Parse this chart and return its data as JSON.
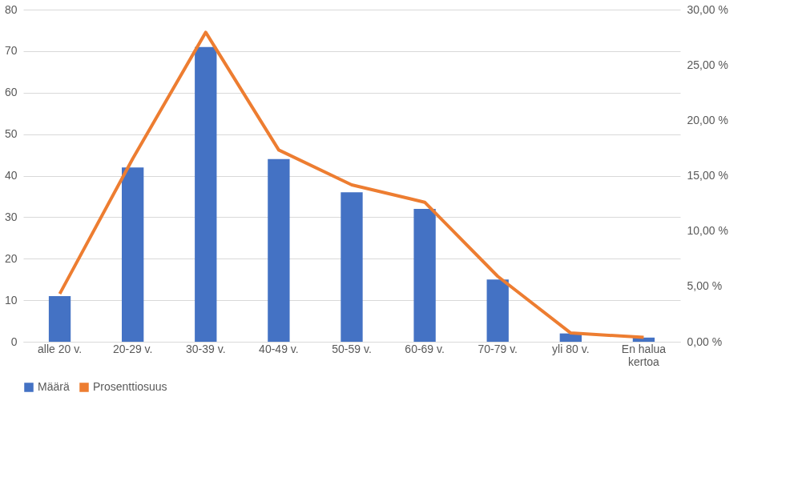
{
  "chart_data": {
    "type": "bar",
    "categories": [
      "alle 20 v.",
      "20-29 v.",
      "30-39 v.",
      "40-49 v.",
      "50-59 v.",
      "60-69 v.",
      "70-79 v.",
      "yli 80 v.",
      "En halua kertoa"
    ],
    "series": [
      {
        "name": "Määrä",
        "color": "#4472c4",
        "values": [
          11,
          42,
          71,
          44,
          36,
          32,
          15,
          2,
          1
        ]
      },
      {
        "name": "Prosenttiosuus",
        "type": "line",
        "axis": "y2",
        "color": "#ed7d31",
        "values": [
          4.33,
          16.54,
          27.95,
          17.32,
          14.17,
          12.6,
          5.91,
          0.79,
          0.39
        ]
      }
    ],
    "ylim": [
      0,
      80
    ],
    "yticks": [
      0,
      10,
      20,
      30,
      40,
      50,
      60,
      70,
      80
    ],
    "y2lim": [
      0,
      30
    ],
    "y2ticks": [
      {
        "value": 0,
        "label": "0,00 %"
      },
      {
        "value": 5,
        "label": "5,00 %"
      },
      {
        "value": 10,
        "label": "10,00 %"
      },
      {
        "value": 15,
        "label": "15,00 %"
      },
      {
        "value": 20,
        "label": "20,00 %"
      },
      {
        "value": 25,
        "label": "25,00 %"
      },
      {
        "value": 30,
        "label": "30,00 %"
      }
    ],
    "grid": "y",
    "legend": "bottom",
    "marker": "none",
    "line_style": "solid"
  }
}
